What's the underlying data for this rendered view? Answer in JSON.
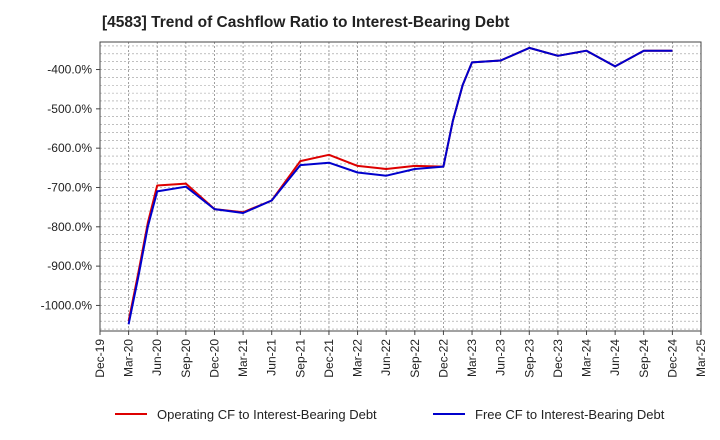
{
  "chart_data": {
    "type": "line",
    "title": "[4583]  Trend of Cashflow Ratio to Interest-Bearing Debt",
    "x": [
      "Dec-19",
      "Mar-20",
      "Jun-20",
      "Sep-20",
      "Dec-20",
      "Mar-21",
      "Jun-21",
      "Sep-21",
      "Dec-21",
      "Mar-22",
      "Jun-22",
      "Sep-22",
      "Dec-22",
      "Mar-23",
      "Jun-23",
      "Sep-23",
      "Dec-23",
      "Mar-24",
      "Jun-24",
      "Sep-24",
      "Dec-24",
      "Mar-25"
    ],
    "ylim": [
      -1065,
      -330
    ],
    "yticks": [
      -400,
      -500,
      -600,
      -700,
      -800,
      -900,
      -1000
    ],
    "ytick_labels": [
      "-400.0%",
      "-500.0%",
      "-600.0%",
      "-700.0%",
      "-800.0%",
      "-900.0%",
      "-1000.0%"
    ],
    "grid": true,
    "legend_position": "bottom",
    "series": [
      {
        "name": "Operating CF to Interest-Bearing Debt",
        "color": "#dd0000",
        "points": [
          [
            1,
            -1040
          ],
          [
            1.33,
            -920
          ],
          [
            1.67,
            -790
          ],
          [
            2,
            -695
          ],
          [
            3,
            -690
          ],
          [
            4,
            -755
          ],
          [
            5,
            -763
          ],
          [
            6,
            -733
          ],
          [
            7,
            -633
          ],
          [
            8,
            -617
          ],
          [
            9,
            -645
          ],
          [
            10,
            -653
          ],
          [
            11,
            -645
          ],
          [
            12,
            -647
          ],
          [
            12.33,
            -530
          ],
          [
            12.67,
            -440
          ],
          [
            13,
            -382
          ],
          [
            14,
            -377
          ],
          [
            15,
            -345
          ],
          [
            16,
            -365
          ],
          [
            17,
            -352
          ],
          [
            18,
            -392
          ],
          [
            19,
            -352
          ],
          [
            20,
            -352
          ]
        ]
      },
      {
        "name": "Free CF to Interest-Bearing Debt",
        "color": "#0000cc",
        "points": [
          [
            1,
            -1048
          ],
          [
            1.33,
            -930
          ],
          [
            1.67,
            -800
          ],
          [
            2,
            -710
          ],
          [
            3,
            -698
          ],
          [
            4,
            -755
          ],
          [
            5,
            -765
          ],
          [
            6,
            -733
          ],
          [
            7,
            -643
          ],
          [
            8,
            -637
          ],
          [
            9,
            -662
          ],
          [
            10,
            -670
          ],
          [
            11,
            -653
          ],
          [
            12,
            -647
          ],
          [
            12.33,
            -530
          ],
          [
            12.67,
            -440
          ],
          [
            13,
            -382
          ],
          [
            14,
            -377
          ],
          [
            15,
            -345
          ],
          [
            16,
            -365
          ],
          [
            17,
            -352
          ],
          [
            18,
            -392
          ],
          [
            19,
            -352
          ],
          [
            20,
            -352
          ]
        ]
      }
    ]
  }
}
